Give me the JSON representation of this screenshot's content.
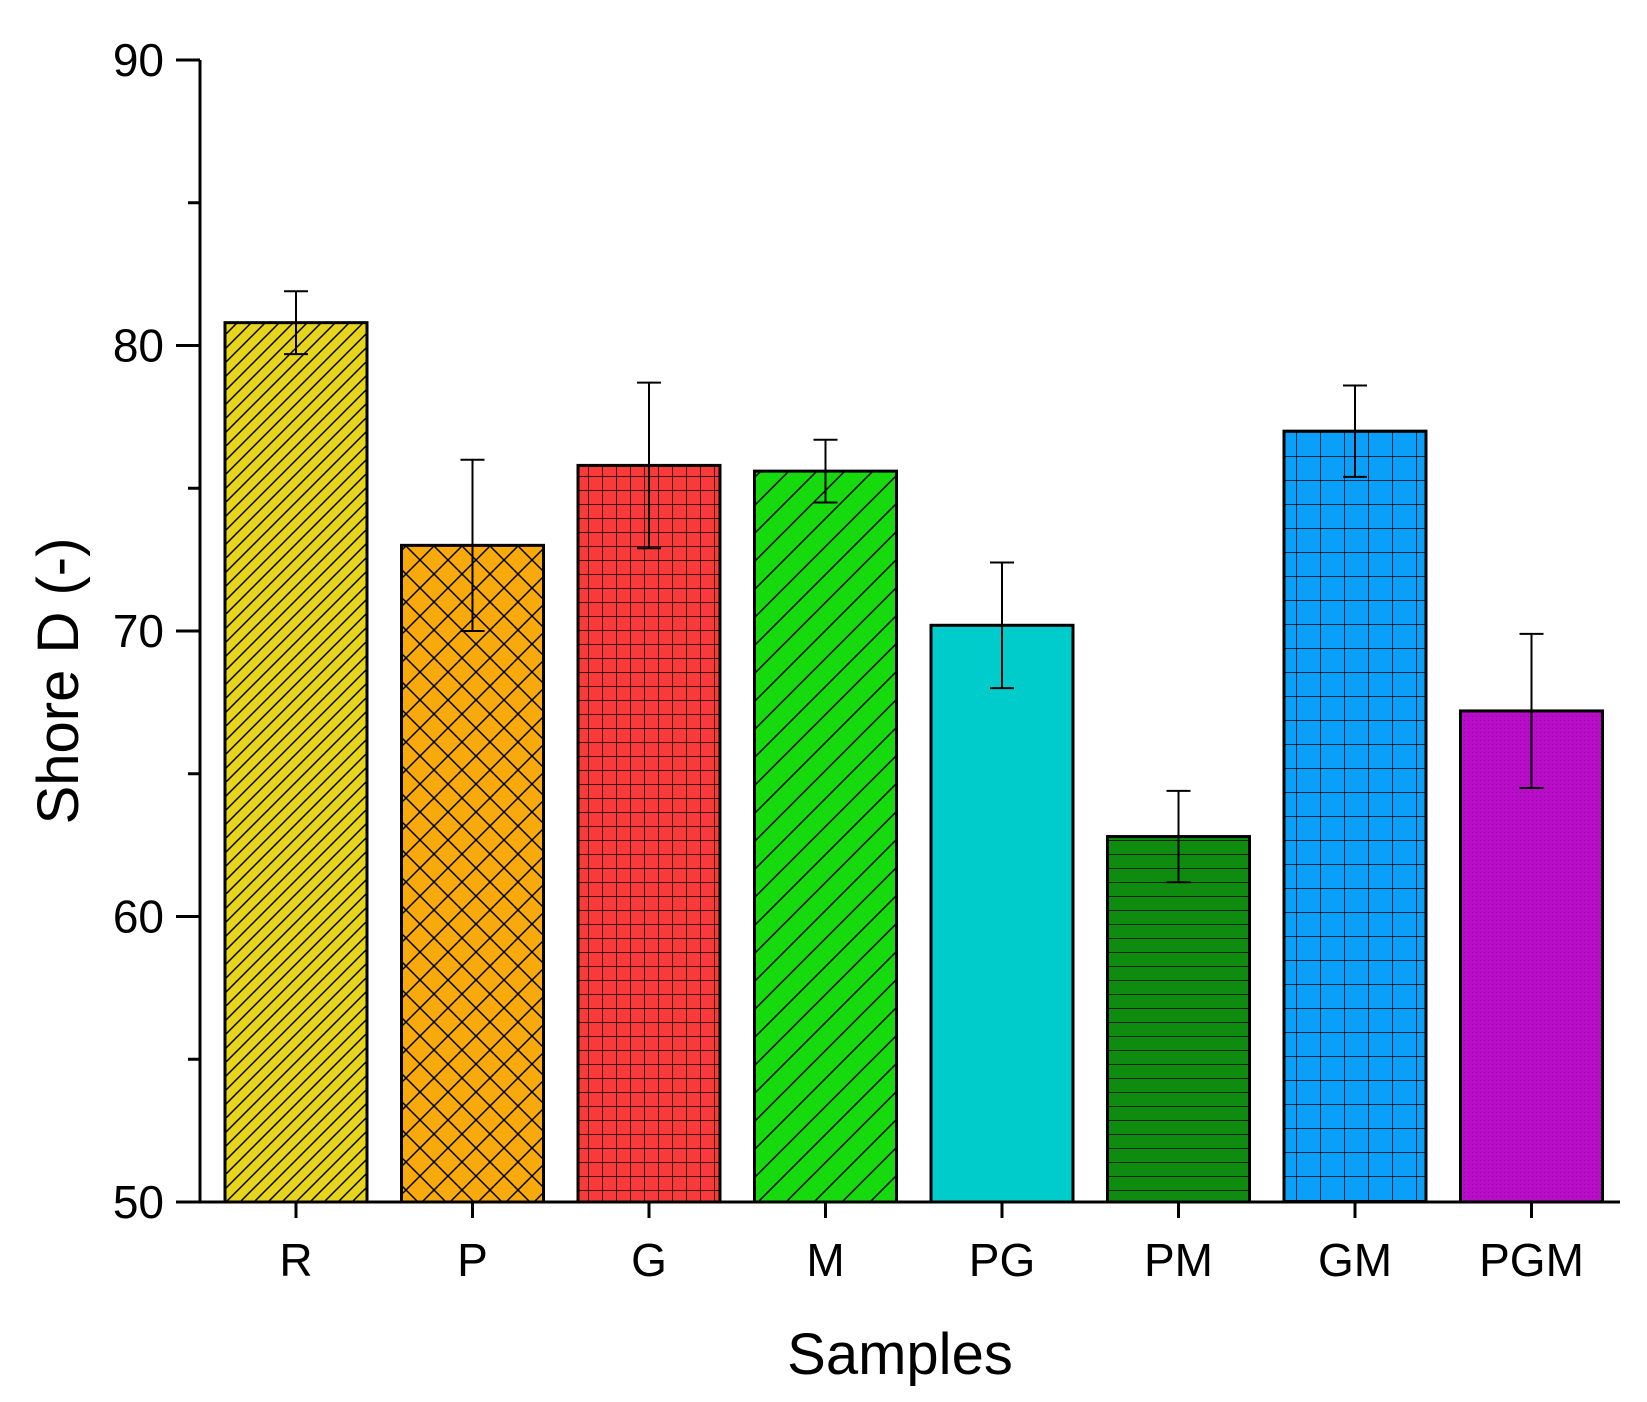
{
  "chart_data": {
    "type": "bar",
    "categories": [
      "R",
      "P",
      "G",
      "M",
      "PG",
      "PM",
      "GM",
      "PGM"
    ],
    "values": [
      80.8,
      73.0,
      75.8,
      75.6,
      70.2,
      62.8,
      77.0,
      67.2
    ],
    "errors": [
      1.1,
      3.0,
      2.9,
      1.1,
      2.2,
      1.6,
      1.6,
      2.7
    ],
    "colors": [
      "#E6D51C",
      "#F8A90C",
      "#F83A3A",
      "#16D90E",
      "#00CCCC",
      "#0F8C0F",
      "#0AA0FA",
      "#B80CC8"
    ],
    "patterns": [
      "diag-dense",
      "crosshatch-diag",
      "grid",
      "diag",
      "none",
      "horizontal",
      "grid-wide",
      "fine"
    ],
    "xlabel": "Samples",
    "ylabel": "Shore D (-)",
    "ylim": [
      50,
      90
    ],
    "yticks": [
      "50",
      "60",
      "70",
      "80",
      "90"
    ],
    "grid": false,
    "legend": "none"
  }
}
